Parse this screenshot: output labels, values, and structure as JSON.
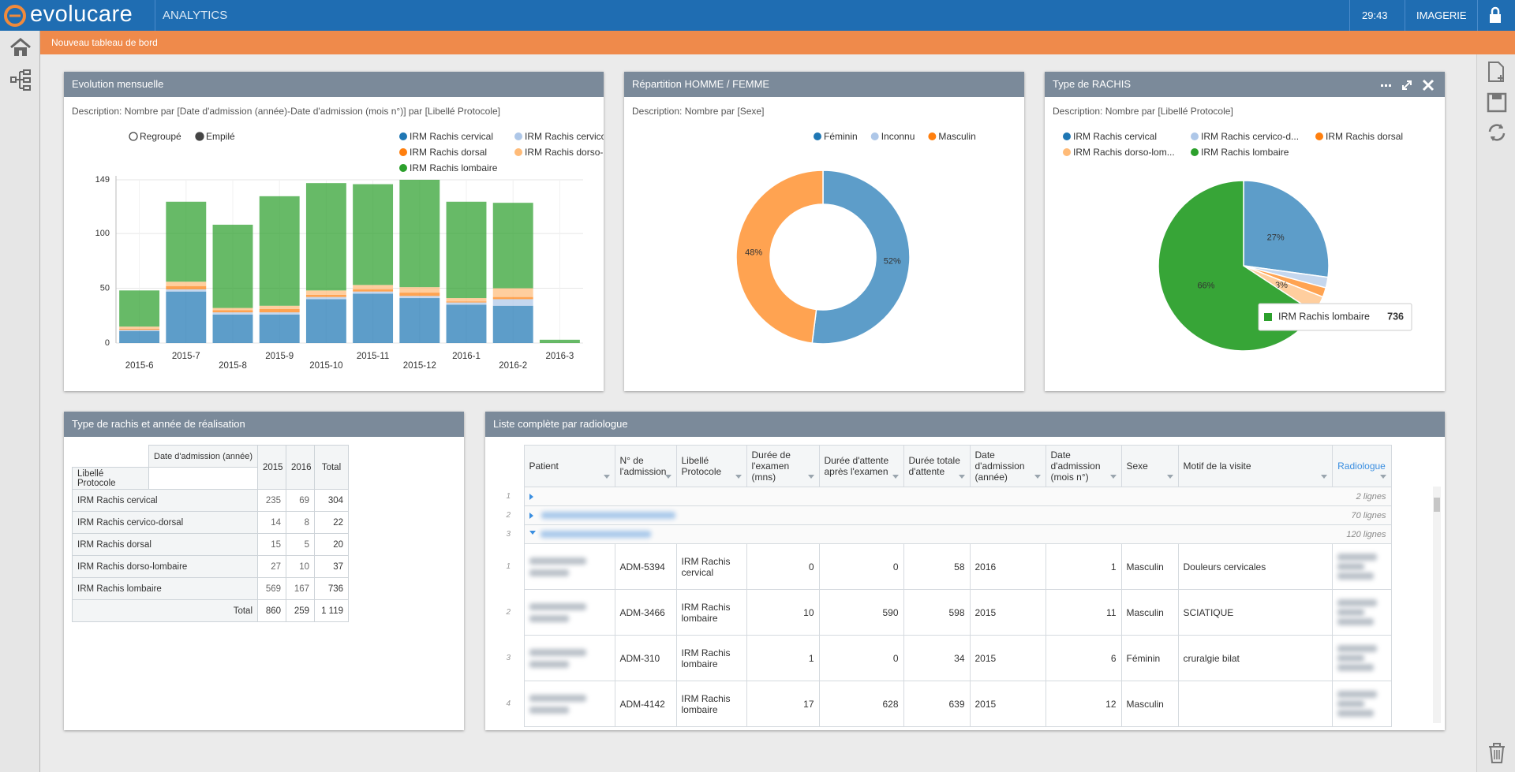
{
  "header": {
    "brand": "evolucare",
    "app": "ANALYTICS",
    "timer": "29:43",
    "module": "IMAGERIE"
  },
  "breadcrumb": "Nouveau tableau de bord",
  "chart_data": [
    {
      "type": "bar",
      "title": "Evolution mensuelle",
      "description": "Description: Nombre par [Date d'admission (année)-Date d'admission (mois n°)] par [Libellé Protocole]",
      "modes": [
        "Regroupé",
        "Empilé"
      ],
      "stacked": true,
      "categories": [
        "2015-6",
        "2015-7",
        "2015-8",
        "2015-9",
        "2015-10",
        "2015-11",
        "2015-12",
        "2016-1",
        "2016-2",
        "2016-3"
      ],
      "series": [
        {
          "name": "IRM Rachis cervical",
          "color": "#1f77b4",
          "values": [
            11,
            47,
            26,
            26,
            40,
            45,
            41,
            35,
            34,
            0
          ]
        },
        {
          "name": "IRM Rachis cervico-d...",
          "color": "#aec7e8",
          "values": [
            1,
            2,
            2,
            2,
            2,
            2,
            2,
            2,
            6,
            0
          ]
        },
        {
          "name": "IRM Rachis dorsal",
          "color": "#ff7f0e",
          "values": [
            1,
            3,
            2,
            3,
            2,
            2,
            3,
            1,
            2,
            0
          ]
        },
        {
          "name": "IRM Rachis dorso-lom...",
          "color": "#ffbb78",
          "values": [
            2,
            4,
            2,
            3,
            4,
            4,
            5,
            3,
            8,
            0
          ]
        },
        {
          "name": "IRM Rachis lombaire",
          "color": "#2ca02c",
          "values": [
            33,
            73,
            76,
            100,
            98,
            92,
            98,
            88,
            78,
            3
          ]
        }
      ],
      "ylim": [
        0,
        149
      ],
      "yticks": [
        0,
        50,
        100,
        149
      ],
      "grid": true
    },
    {
      "type": "donut",
      "title": "Répartition HOMME / FEMME",
      "description": "Description: Nombre par [Sexe]",
      "categories": [
        "Féminin",
        "Inconnu",
        "Masculin"
      ],
      "values": [
        52,
        0,
        48
      ],
      "value_labels": [
        "52%",
        null,
        "48%"
      ],
      "colors": [
        "#1f77b4",
        "#aec7e8",
        "#ff7f0e"
      ]
    },
    {
      "type": "pie",
      "title": "Type de RACHIS",
      "description": "Description: Nombre par [Libellé Protocole]",
      "categories": [
        "IRM Rachis cervical",
        "IRM Rachis cervico-d...",
        "IRM Rachis dorsal",
        "IRM Rachis dorso-lom...",
        "IRM Rachis lombaire"
      ],
      "values": [
        27.2,
        2,
        1.8,
        3.3,
        65.8
      ],
      "value_labels": [
        "27%",
        null,
        null,
        "3%",
        "66%"
      ],
      "colors": [
        "#1f77b4",
        "#aec7e8",
        "#ff7f0e",
        "#ffbb78",
        "#2ca02c"
      ],
      "tooltip": {
        "name": "IRM Rachis lombaire",
        "value": 736
      }
    }
  ],
  "pivot": {
    "title": "Type de rachis et année de réalisation",
    "col_header": "Date d'admission (année)",
    "row_header": "Libellé Protocole",
    "columns": [
      "2015",
      "2016",
      "Total"
    ],
    "rows": [
      {
        "label": "IRM Rachis cervical",
        "values": [
          235,
          69,
          304
        ]
      },
      {
        "label": "IRM Rachis cervico-dorsal",
        "values": [
          14,
          8,
          22
        ]
      },
      {
        "label": "IRM Rachis dorsal",
        "values": [
          15,
          5,
          20
        ]
      },
      {
        "label": "IRM Rachis dorso-lombaire",
        "values": [
          27,
          10,
          37
        ]
      },
      {
        "label": "IRM Rachis lombaire",
        "values": [
          569,
          167,
          736
        ]
      }
    ],
    "total": {
      "label": "Total",
      "values": [
        860,
        259,
        "1 119"
      ]
    }
  },
  "list": {
    "title": "Liste complète par radiologue",
    "columns": [
      "Patient",
      "N° de l'admission",
      "Libellé Protocole",
      "Durée de l'examen (mns)",
      "Durée d'attente après l'examen",
      "Durée totale d'attente",
      "Date d'admission (année)",
      "Date d'admission (mois n°)",
      "Sexe",
      "Motif de la visite",
      "Radiologue"
    ],
    "group_numbers": [
      1,
      2,
      3
    ],
    "groups": [
      "2 lignes",
      "70 lignes",
      "120 lignes"
    ],
    "row_numbers": [
      1,
      2,
      3,
      4
    ],
    "rows": [
      [
        null,
        "ADM-5394",
        "IRM Rachis cervical",
        0,
        0,
        58,
        2016,
        1,
        "Masculin",
        "Douleurs cervicales",
        null
      ],
      [
        null,
        "ADM-3466",
        "IRM Rachis lombaire",
        10,
        590,
        598,
        2015,
        11,
        "Masculin",
        "SCIATIQUE",
        null
      ],
      [
        null,
        "ADM-310",
        "IRM Rachis lombaire",
        1,
        0,
        34,
        2015,
        6,
        "Féminin",
        "cruralgie bilat",
        null
      ],
      [
        null,
        "ADM-4142",
        "IRM Rachis lombaire",
        17,
        628,
        639,
        2015,
        12,
        "Masculin",
        null,
        null
      ]
    ]
  }
}
